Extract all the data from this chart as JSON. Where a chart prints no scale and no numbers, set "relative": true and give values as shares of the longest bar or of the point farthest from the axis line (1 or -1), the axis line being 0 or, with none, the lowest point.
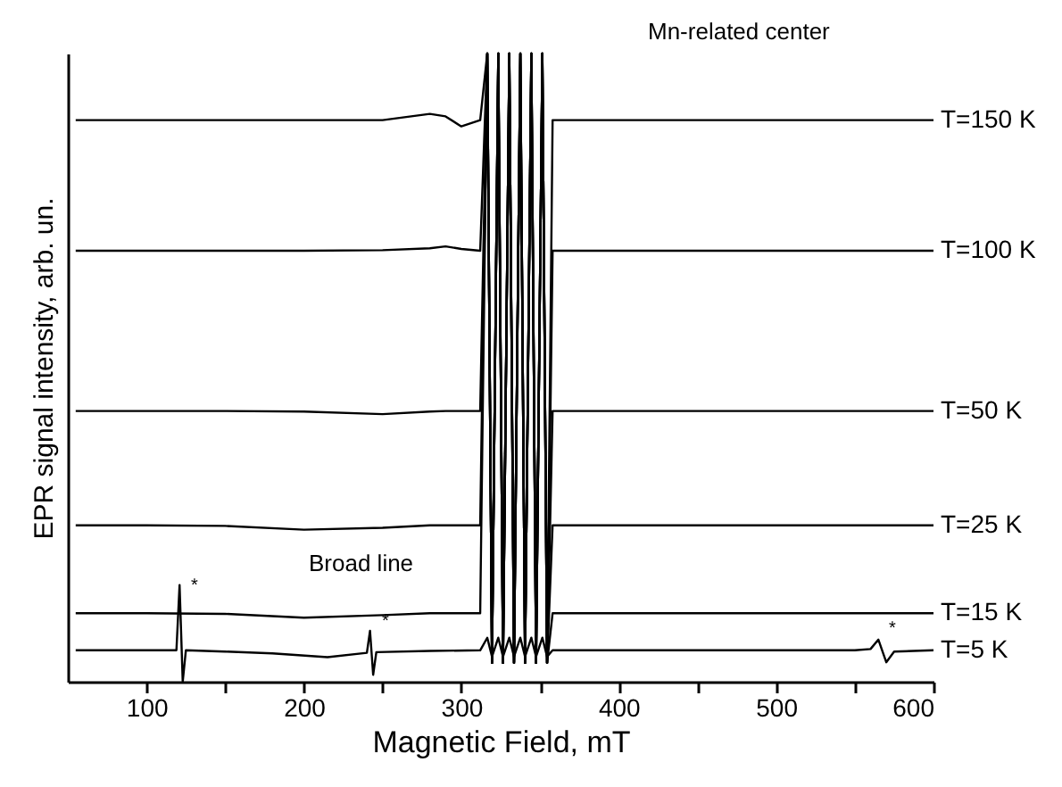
{
  "chart_data": {
    "type": "line",
    "relative": true,
    "xlabel": "Magnetic Field, mT",
    "ylabel": "EPR signal intensity, arb. un.",
    "xlim": [
      50,
      600
    ],
    "xticks": [
      100,
      {
        "value": 150,
        "label": null
      },
      200,
      {
        "value": 250,
        "label": null
      },
      300,
      {
        "value": 350,
        "label": null
      },
      400,
      {
        "value": 450,
        "label": null
      },
      500,
      {
        "value": 550,
        "label": null
      },
      600
    ],
    "tick_labels": "x",
    "legend": false,
    "grid": false,
    "series": [
      {
        "name": "T=150 K",
        "color": "#000000",
        "x": [
          55,
          100,
          150,
          200,
          250,
          280,
          290,
          300,
          312,
          316.5,
          319.5,
          323.5,
          326.5,
          330.5,
          333.5,
          337.5,
          340.5,
          344.5,
          347.5,
          351.5,
          354.5,
          358,
          400,
          450,
          500,
          550,
          600
        ],
        "values": [
          0.894,
          0.894,
          0.894,
          0.894,
          0.894,
          0.904,
          0.9,
          0.884,
          0.894,
          1,
          0.03,
          1,
          0.03,
          1,
          0.03,
          1,
          0.03,
          1,
          0.03,
          1,
          0.03,
          0.894,
          0.894,
          0.894,
          0.894,
          0.894,
          0.894
        ]
      },
      {
        "name": "T=100 K",
        "color": "#000000",
        "x": [
          55,
          100,
          150,
          200,
          250,
          280,
          290,
          300,
          312,
          316.5,
          319.5,
          323.5,
          326.5,
          330.5,
          333.5,
          337.5,
          340.5,
          344.5,
          347.5,
          351.5,
          354.5,
          358,
          400,
          450,
          500,
          550,
          600
        ],
        "values": [
          0.686,
          0.686,
          0.686,
          0.686,
          0.687,
          0.69,
          0.693,
          0.689,
          0.686,
          1,
          0.03,
          1,
          0.03,
          1,
          0.03,
          1,
          0.03,
          1,
          0.03,
          1,
          0.03,
          0.686,
          0.686,
          0.686,
          0.686,
          0.686,
          0.686
        ]
      },
      {
        "name": "T=50 K",
        "color": "#000000",
        "x": [
          55,
          100,
          150,
          200,
          250,
          280,
          290,
          300,
          312,
          316.5,
          319.5,
          323.5,
          326.5,
          330.5,
          333.5,
          337.5,
          340.5,
          344.5,
          347.5,
          351.5,
          354.5,
          358,
          400,
          450,
          500,
          550,
          600
        ],
        "values": [
          0.431,
          0.431,
          0.431,
          0.43,
          0.426,
          0.43,
          0.431,
          0.431,
          0.431,
          1,
          0.03,
          1,
          0.03,
          1,
          0.03,
          1,
          0.03,
          1,
          0.03,
          1,
          0.03,
          0.431,
          0.431,
          0.431,
          0.431,
          0.431,
          0.431
        ]
      },
      {
        "name": "T=25 K",
        "color": "#000000",
        "x": [
          55,
          100,
          150,
          200,
          250,
          280,
          290,
          300,
          312,
          316.5,
          319.5,
          323.5,
          326.5,
          330.5,
          333.5,
          337.5,
          340.5,
          344.5,
          347.5,
          351.5,
          354.5,
          358,
          400,
          450,
          500,
          550,
          600
        ],
        "values": [
          0.249,
          0.249,
          0.248,
          0.242,
          0.245,
          0.249,
          0.249,
          0.249,
          0.249,
          1,
          0.03,
          1,
          0.03,
          1,
          0.03,
          1,
          0.03,
          1,
          0.03,
          1,
          0.03,
          0.249,
          0.249,
          0.249,
          0.249,
          0.249,
          0.249
        ]
      },
      {
        "name": "T=15 K",
        "color": "#000000",
        "x": [
          55,
          100,
          150,
          200,
          250,
          280,
          290,
          300,
          312,
          316.5,
          319.5,
          323.5,
          326.5,
          330.5,
          333.5,
          337.5,
          340.5,
          344.5,
          347.5,
          351.5,
          354.5,
          358,
          400,
          450,
          500,
          550,
          600
        ],
        "values": [
          0.109,
          0.109,
          0.108,
          0.102,
          0.106,
          0.109,
          0.109,
          0.109,
          0.109,
          1,
          0.03,
          1,
          0.03,
          1,
          0.03,
          1,
          0.03,
          1,
          0.03,
          1,
          0.03,
          0.109,
          0.109,
          0.109,
          0.109,
          0.109,
          0.109
        ]
      },
      {
        "name": "T=5 K",
        "color": "#000000",
        "x": [
          55,
          100,
          119,
          121,
          123,
          125,
          150,
          180,
          215,
          240,
          242,
          244,
          246,
          280,
          312,
          316.5,
          319.5,
          323.5,
          326.5,
          330.5,
          333.5,
          337.5,
          340.5,
          344.5,
          347.5,
          351.5,
          354.5,
          358,
          400,
          450,
          500,
          550,
          560,
          565,
          570,
          575,
          600
        ],
        "values": [
          0.05,
          0.05,
          0.05,
          0.154,
          0.0,
          0.05,
          0.048,
          0.045,
          0.039,
          0.046,
          0.081,
          0.011,
          0.047,
          0.049,
          0.05,
          0.07,
          0.04,
          0.07,
          0.04,
          0.07,
          0.04,
          0.07,
          0.04,
          0.07,
          0.04,
          0.07,
          0.04,
          0.05,
          0.05,
          0.05,
          0.05,
          0.05,
          0.052,
          0.067,
          0.031,
          0.048,
          0.05
        ]
      }
    ],
    "annotations": [
      "Mn-related center",
      "Broad line",
      "*",
      "*",
      "*"
    ]
  }
}
